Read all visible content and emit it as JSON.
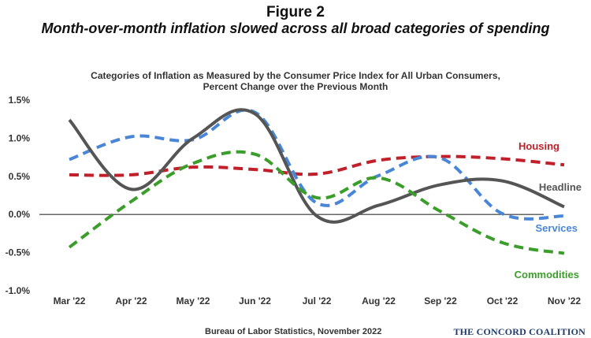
{
  "header": {
    "figure_label": "Figure 2",
    "figure_title": "Month-over-month inflation slowed across all broad categories of spending"
  },
  "chart_data": {
    "type": "line",
    "title": "Categories of Inflation as Measured by the Consumer Price Index for All Urban Consumers,",
    "subtitle": "Percent Change over the Previous Month",
    "xlabel": "",
    "ylabel": "",
    "categories": [
      "Mar '22",
      "Apr '22",
      "May '22",
      "Jun '22",
      "Jul '22",
      "Aug '22",
      "Sep '22",
      "Oct '22",
      "Nov '22"
    ],
    "ylim": [
      -1.0,
      1.5
    ],
    "yticks": [
      -1.0,
      -0.5,
      0.0,
      0.5,
      1.0,
      1.5
    ],
    "ytick_labels": [
      "-1.0%",
      "-0.5%",
      "0.0%",
      "0.5%",
      "1.0%",
      "1.5%"
    ],
    "grid": false,
    "series": [
      {
        "name": "Housing",
        "color": "#c0202a",
        "style": "dashed",
        "values": [
          0.52,
          0.52,
          0.62,
          0.59,
          0.53,
          0.71,
          0.76,
          0.73,
          0.65
        ]
      },
      {
        "name": "Services",
        "color": "#4a86d8",
        "style": "dashed",
        "values": [
          0.72,
          1.02,
          0.98,
          1.34,
          0.15,
          0.51,
          0.74,
          0.01,
          -0.02
        ]
      },
      {
        "name": "Headline",
        "color": "#555555",
        "style": "solid",
        "values": [
          1.24,
          0.33,
          1.0,
          1.32,
          -0.02,
          0.12,
          0.39,
          0.44,
          0.1
        ]
      },
      {
        "name": "Commodities",
        "color": "#3b9e2a",
        "style": "dashed",
        "values": [
          -0.43,
          0.17,
          0.67,
          0.79,
          0.22,
          0.48,
          0.04,
          -0.37,
          -0.51
        ]
      }
    ],
    "source": "Bureau of Labor Statistics, November 2022",
    "organization": "THE CONCORD COALITION"
  }
}
